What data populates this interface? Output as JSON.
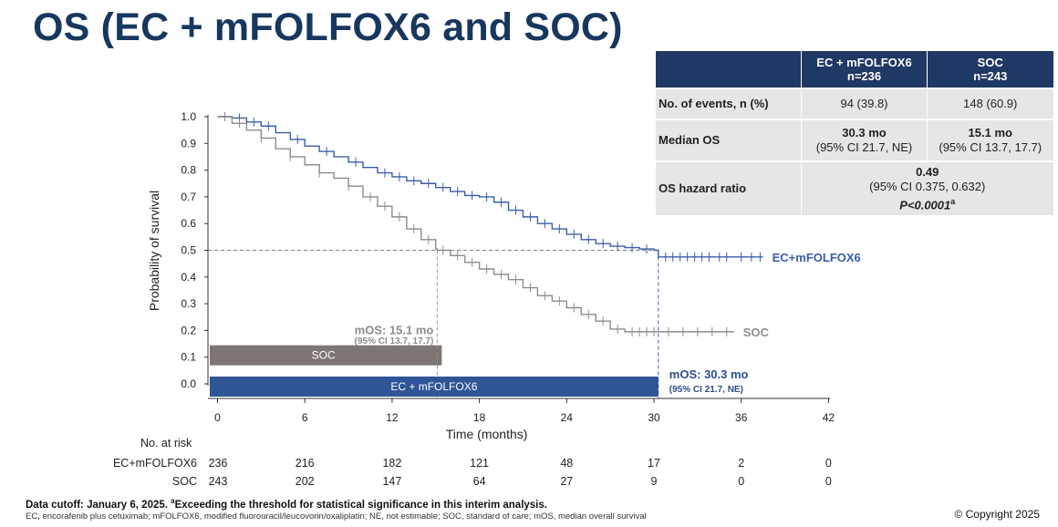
{
  "title": "OS (EC + mFOLFOX6 and SOC)",
  "summary_table": {
    "col1_line1": "EC + mFOLFOX6",
    "col1_line2": "n=236",
    "col2_line1": "SOC",
    "col2_line2": "n=243",
    "rows": {
      "events": {
        "label": "No. of events, n (%)",
        "ec": "94 (39.8)",
        "soc": "148 (60.9)"
      },
      "median": {
        "label": "Median OS",
        "ec_value": "30.3 mo",
        "ec_ci": "(95% CI 21.7, NE)",
        "soc_value": "15.1 mo",
        "soc_ci": "(95% CI 13.7, 17.7)"
      },
      "hr": {
        "label": "OS hazard ratio",
        "value": "0.49",
        "ci": "(95% CI 0.375, 0.632)",
        "p_text": "P<0.0001",
        "p_sup": "a"
      }
    }
  },
  "chart_data": {
    "type": "line",
    "ylabel": "Probability of survival",
    "xlabel": "Time (months)",
    "xlim": [
      -1,
      42
    ],
    "ylim": [
      0,
      1
    ],
    "xticks": [
      0,
      6,
      12,
      18,
      24,
      30,
      36,
      42
    ],
    "yticks": [
      0.0,
      0.1,
      0.2,
      0.3,
      0.4,
      0.5,
      0.6,
      0.7,
      0.8,
      0.9,
      1.0
    ],
    "series": [
      {
        "name": "EC+mFOLFOX6",
        "color": "#3a5da8",
        "points": [
          [
            0,
            1.0
          ],
          [
            1,
            0.995
          ],
          [
            2,
            0.98
          ],
          [
            3,
            0.965
          ],
          [
            4,
            0.94
          ],
          [
            5,
            0.915
          ],
          [
            6,
            0.89
          ],
          [
            7,
            0.87
          ],
          [
            8,
            0.85
          ],
          [
            9,
            0.83
          ],
          [
            10,
            0.81
          ],
          [
            11,
            0.79
          ],
          [
            12,
            0.775
          ],
          [
            13,
            0.76
          ],
          [
            14,
            0.75
          ],
          [
            15,
            0.735
          ],
          [
            16,
            0.72
          ],
          [
            17,
            0.705
          ],
          [
            18,
            0.7
          ],
          [
            19,
            0.68
          ],
          [
            20,
            0.65
          ],
          [
            21,
            0.625
          ],
          [
            22,
            0.6
          ],
          [
            23,
            0.58
          ],
          [
            24,
            0.56
          ],
          [
            25,
            0.54
          ],
          [
            26,
            0.525
          ],
          [
            27,
            0.515
          ],
          [
            28,
            0.51
          ],
          [
            29,
            0.505
          ],
          [
            30,
            0.5
          ],
          [
            30.3,
            0.475
          ],
          [
            37.5,
            0.475
          ]
        ],
        "censor_marks": [
          0.5,
          1.5,
          2.5,
          3.5,
          5.5,
          7.5,
          9.5,
          11.5,
          12.5,
          13.5,
          14.5,
          15.5,
          16.5,
          17.5,
          18.5,
          19.5,
          20.5,
          21.5,
          22.5,
          23.5,
          24.5,
          25.5,
          26.5,
          27.5,
          28.5,
          29.5,
          30.8,
          31.3,
          31.8,
          32.3,
          32.8,
          33.3,
          33.8,
          34.5,
          35.0,
          36.0,
          36.7,
          37.3
        ],
        "end_label": "EC+mFOLFOX6"
      },
      {
        "name": "SOC",
        "color": "#8c8c8c",
        "points": [
          [
            0,
            1.0
          ],
          [
            1,
            0.975
          ],
          [
            2,
            0.95
          ],
          [
            3,
            0.92
          ],
          [
            4,
            0.88
          ],
          [
            5,
            0.85
          ],
          [
            6,
            0.82
          ],
          [
            7,
            0.79
          ],
          [
            8,
            0.77
          ],
          [
            9,
            0.74
          ],
          [
            10,
            0.7
          ],
          [
            11,
            0.665
          ],
          [
            12,
            0.625
          ],
          [
            13,
            0.58
          ],
          [
            14,
            0.54
          ],
          [
            15,
            0.505
          ],
          [
            15.1,
            0.5
          ],
          [
            16,
            0.48
          ],
          [
            17,
            0.455
          ],
          [
            18,
            0.43
          ],
          [
            19,
            0.41
          ],
          [
            20,
            0.39
          ],
          [
            21,
            0.36
          ],
          [
            22,
            0.33
          ],
          [
            23,
            0.31
          ],
          [
            24,
            0.285
          ],
          [
            25,
            0.26
          ],
          [
            26,
            0.235
          ],
          [
            27,
            0.205
          ],
          [
            28,
            0.195
          ],
          [
            35.5,
            0.195
          ]
        ],
        "censor_marks": [
          0.5,
          1.5,
          3.0,
          5.0,
          7.0,
          9.0,
          10.5,
          11.5,
          12.5,
          13.5,
          14.5,
          15.5,
          16.5,
          17.5,
          18.5,
          19.5,
          20.5,
          21.5,
          22.5,
          23.5,
          24.5,
          25.5,
          26.5,
          27.5,
          28.5,
          29.0,
          29.5,
          30.0,
          31.0,
          32.0,
          33.0,
          34.0,
          35.0
        ],
        "end_label": "SOC"
      }
    ],
    "median_line_y": 0.5,
    "median_markers": [
      {
        "series": "SOC",
        "x": 15.1,
        "label": "mOS: 15.1 mo",
        "ci": "(95% CI 13.7, 17.7)",
        "ci_range": [
          13.7,
          17.7
        ],
        "bar_label": "SOC",
        "bar_y": 0.1,
        "color": "#8c8c8c",
        "bar_color": "#7d7673"
      },
      {
        "series": "EC+mFOLFOX6",
        "x": 30.3,
        "label": "mOS: 30.3 mo",
        "ci": "(95% CI 21.7, NE)",
        "ci_range": [
          21.7,
          null
        ],
        "bar_label": "EC + mFOLFOX6",
        "bar_y": 0.0,
        "color": "#2e4d8c",
        "bar_color": "#2f5597"
      }
    ]
  },
  "at_risk": {
    "header": "No. at risk",
    "times": [
      0,
      6,
      12,
      18,
      24,
      30,
      36,
      42
    ],
    "rows": [
      {
        "label": "EC+mFOLFOX6",
        "values": [
          "236",
          "216",
          "182",
          "121",
          "48",
          "17",
          "2",
          "0"
        ]
      },
      {
        "label": "SOC",
        "values": [
          "243",
          "202",
          "147",
          "64",
          "27",
          "9",
          "0",
          "0"
        ]
      }
    ]
  },
  "footer": {
    "line1_main": "Data cutoff: January 6, 2025. ",
    "line1_sup": "a",
    "line1_rest": "Exceeding the threshold for statistical significance in this interim analysis.",
    "line2": "EC, encorafenib plus cetuximab; mFOLFOX6, modified fluorouracil/leucovorin/oxaliplatin; NE, not estimable; SOC, standard of care; mOS, median overall survival"
  },
  "copyright": "© Copyright 2025"
}
